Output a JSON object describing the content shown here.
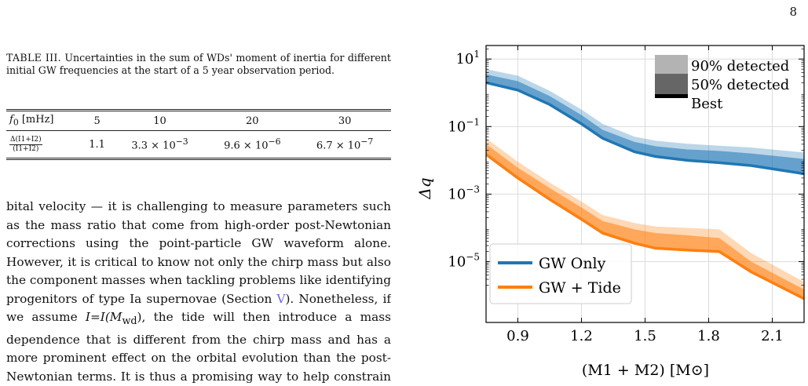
{
  "page_number": "8",
  "table": {
    "caption_label": "TABLE III.",
    "caption_text": "Uncertainties in the sum of WDs' moment of inertia for different initial GW frequencies at the start of a 5 year observation period.",
    "header_label": "f",
    "header_sub": "0",
    "header_unit": "[mHz]",
    "frequencies": [
      "5",
      "10",
      "20",
      "30"
    ],
    "row_label_num": "Δ(I1+I2)",
    "row_label_den": "(I1+I2)",
    "values": [
      {
        "mantissa": "1.1",
        "exponent": ""
      },
      {
        "mantissa": "3.3 × 10",
        "exponent": "−3"
      },
      {
        "mantissa": "9.6 × 10",
        "exponent": "−6"
      },
      {
        "mantissa": "6.7 × 10",
        "exponent": "−7"
      }
    ]
  },
  "body": {
    "part1": "bital velocity — it is challenging to measure parameters such as the mass ratio that come from high-order post-Newtonian corrections using the point-particle GW waveform alone. However, it is critical to know not only the chirp mass but also the component masses when tackling problems like identifying progenitors of type Ia supernovae (Section ",
    "section_ref": "V",
    "part2": "). Nonetheless, if we assume ",
    "formula": "I=I(M",
    "formula_sub": "wd",
    "part3": "), the tide will then introduce a mass dependence that is different from the chirp mass and has a more prominent effect on the orbital evolution than the post-Newtonian terms. It is thus a promising way to help constrain a WD"
  },
  "chart_data": {
    "type": "area",
    "xlabel": "(M1 + M2) [M⊙]",
    "ylabel": "Δq",
    "xlim": [
      0.75,
      2.25
    ],
    "ylim_log10": [
      -6.8,
      1.4
    ],
    "log_y": true,
    "grid": true,
    "x_ticks": [
      "0.9",
      "1.2",
      "1.5",
      "1.8",
      "2.1"
    ],
    "y_ticks": [
      {
        "base": "10",
        "exp": "1",
        "log10": 1
      },
      {
        "base": "10",
        "exp": "−1",
        "log10": -1
      },
      {
        "base": "10",
        "exp": "−3",
        "log10": -3
      },
      {
        "base": "10",
        "exp": "−5",
        "log10": -5
      }
    ],
    "band_legend": {
      "placement": "upper-right",
      "entries": [
        "90% detected",
        "50% detected",
        "Best"
      ]
    },
    "series_legend": {
      "placement": "lower-left"
    },
    "series": [
      {
        "name": "GW Only",
        "color": "#1f77b4",
        "x": [
          0.75,
          0.9,
          1.05,
          1.2,
          1.3,
          1.45,
          1.55,
          1.7,
          1.85,
          2.0,
          2.25
        ],
        "best": [
          2.0,
          1.2,
          0.45,
          0.12,
          0.045,
          0.018,
          0.013,
          0.01,
          0.0085,
          0.007,
          0.004
        ],
        "p50": [
          3.5,
          2.2,
          0.8,
          0.22,
          0.08,
          0.035,
          0.026,
          0.021,
          0.019,
          0.016,
          0.011
        ],
        "p90": [
          5.0,
          3.2,
          1.15,
          0.32,
          0.12,
          0.05,
          0.038,
          0.031,
          0.027,
          0.024,
          0.017
        ]
      },
      {
        "name": "GW + Tide",
        "color": "#ff7f0e",
        "x": [
          0.75,
          0.9,
          1.05,
          1.2,
          1.3,
          1.45,
          1.55,
          1.7,
          1.85,
          2.0,
          2.25
        ],
        "best": [
          0.015,
          0.003,
          0.0007,
          0.00018,
          7e-05,
          3.5e-05,
          2.5e-05,
          2.2e-05,
          2e-05,
          5e-06,
          8e-07
        ],
        "p50": [
          0.03,
          0.006,
          0.0015,
          0.0004,
          0.00016,
          9e-05,
          7e-05,
          6e-05,
          5e-05,
          1e-05,
          1.5e-06
        ],
        "p90": [
          0.045,
          0.009,
          0.0022,
          0.0006,
          0.00024,
          0.00014,
          0.00011,
          0.0001,
          9e-05,
          1.8e-05,
          2.5e-06
        ]
      }
    ]
  }
}
